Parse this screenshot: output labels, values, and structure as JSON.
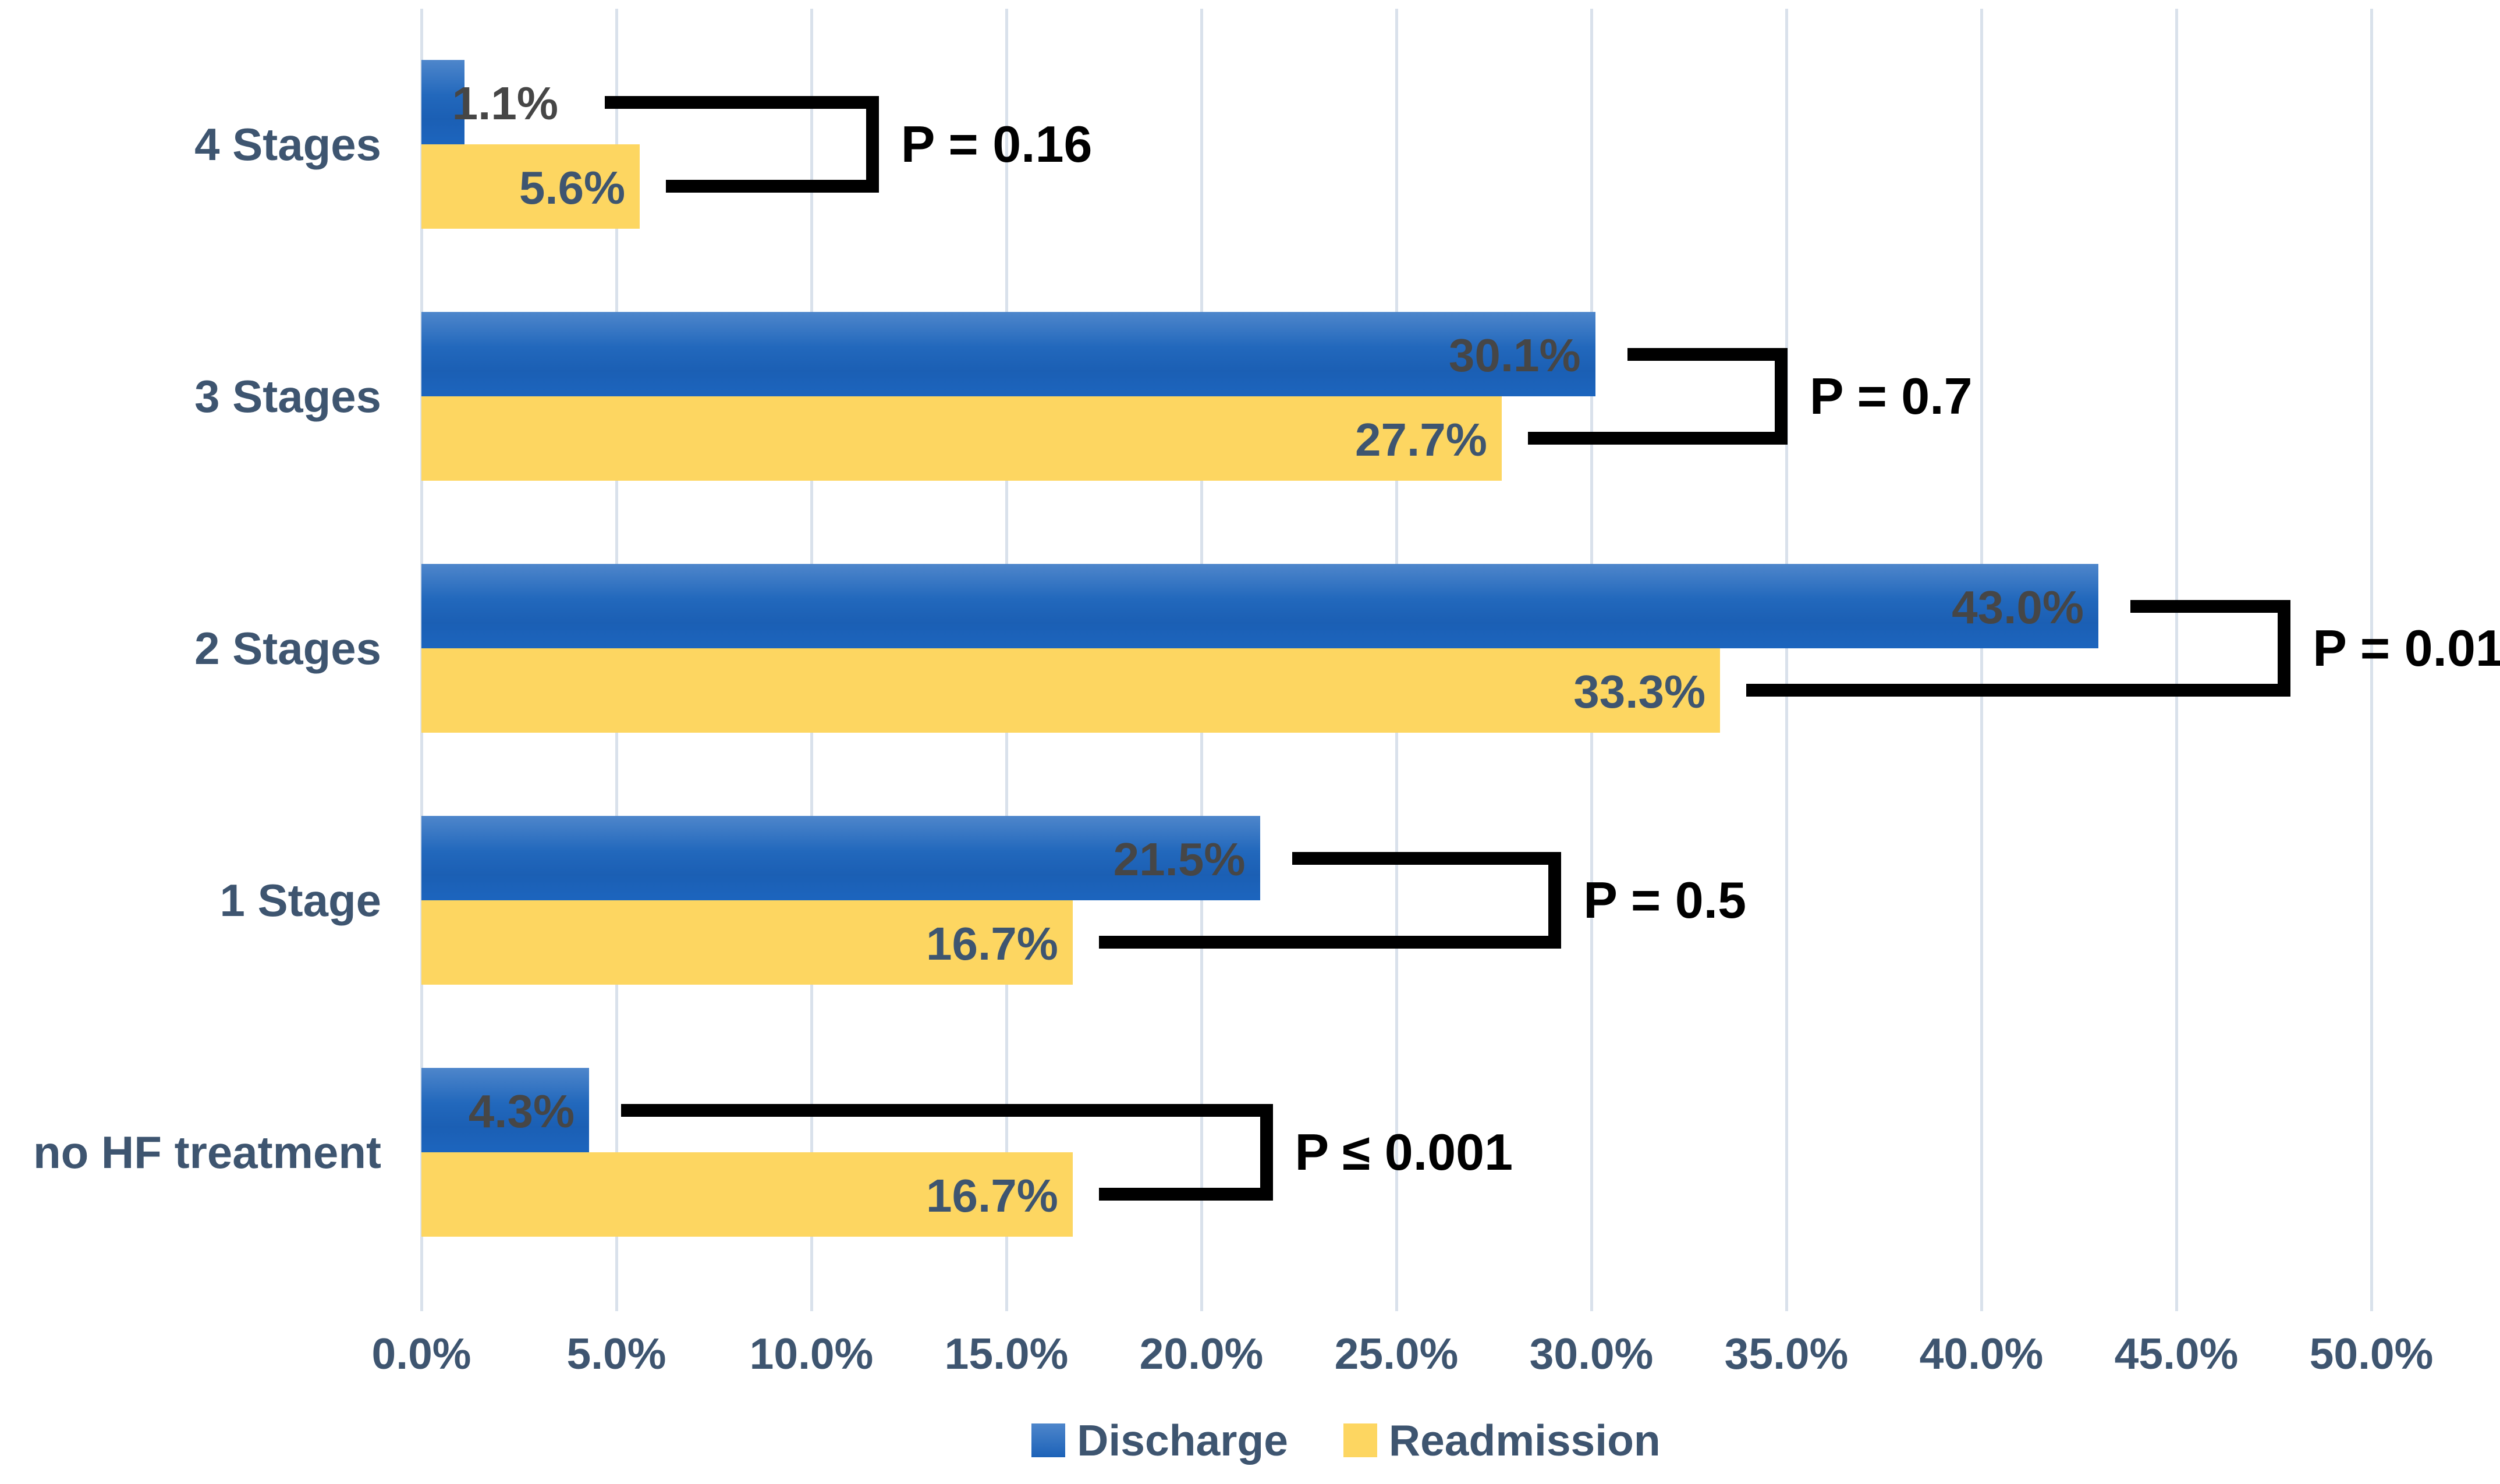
{
  "chart_data": {
    "type": "bar",
    "orientation": "horizontal",
    "title": "",
    "categories": [
      "4 Stages",
      "3 Stages",
      "2 Stages",
      "1 Stage",
      "no HF treatment"
    ],
    "series": [
      {
        "name": "Discharge",
        "color_top": "#4E86CB",
        "color_bottom": "#1C62B8",
        "label_color": "#464646",
        "values": [
          1.1,
          30.1,
          43.0,
          21.5,
          4.3
        ],
        "labels": [
          "1.1%",
          "30.1%",
          "43.0%",
          "21.5%",
          "4.3%"
        ]
      },
      {
        "name": "Readmission",
        "color": "#FDD661",
        "label_color": "#3E5570",
        "values": [
          5.6,
          27.7,
          33.3,
          16.7,
          16.7
        ],
        "labels": [
          "5.6%",
          "27.7%",
          "33.3%",
          "16.7%",
          "16.7%"
        ]
      }
    ],
    "p_values": [
      {
        "text": "P = 0.16",
        "x_pct": 11.4
      },
      {
        "text": "P = 0.7",
        "x_pct": 34.7
      },
      {
        "text": "P = 0.01",
        "x_pct": 47.6
      },
      {
        "text": "P = 0.5",
        "x_pct": 28.9
      },
      {
        "text": "P ≤ 0.001",
        "x_pct": 21.5
      }
    ],
    "x_axis": {
      "min": 0,
      "max": 50,
      "tick_step": 5,
      "unit": "%",
      "ticks": [
        "0.0%",
        "5.0%",
        "10.0%",
        "15.0%",
        "20.0%",
        "25.0%",
        "30.0%",
        "35.0%",
        "40.0%",
        "45.0%",
        "50.0%"
      ]
    },
    "legend": {
      "position": "bottom",
      "items": [
        "Discharge",
        "Readmission"
      ]
    },
    "grid": true,
    "gridline_color": "#D9E1EB",
    "axis_label_color": "#3E5570",
    "category_label_color": "#3E5570",
    "bracket_color": "#000000"
  }
}
